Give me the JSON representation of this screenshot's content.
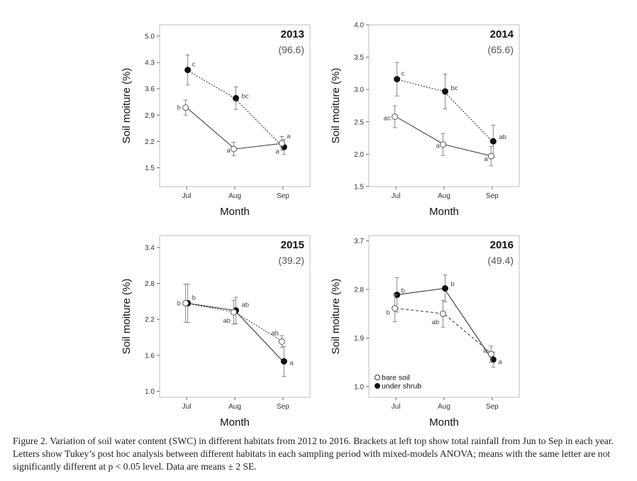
{
  "chart_data": [
    {
      "type": "line",
      "title": "2013",
      "rainfall": "(96.6)",
      "xlabel": "Month",
      "ylabel": "Soil moiture (%)",
      "categories": [
        "Jul",
        "Aug",
        "Sep"
      ],
      "ylim": [
        1.0,
        5.3
      ],
      "yticks": [
        1.5,
        2.2,
        2.9,
        3.6,
        4.3,
        5.0
      ],
      "ytick_labels": [
        "1.5",
        "2.2",
        "2.9",
        "3.6",
        "4.3",
        "5.0"
      ],
      "series": [
        {
          "name": "bare soil",
          "marker": "open",
          "line": "solid",
          "values": [
            3.1,
            2.0,
            2.15
          ],
          "errors": [
            0.2,
            0.18,
            0.18
          ],
          "letters": [
            "b",
            "a",
            "a"
          ]
        },
        {
          "name": "under shrub",
          "marker": "filled",
          "line": "dotted",
          "values": [
            4.1,
            3.35,
            2.05
          ],
          "errors": [
            0.4,
            0.3,
            0.2
          ],
          "letters": [
            "c",
            "bc",
            "a"
          ]
        }
      ]
    },
    {
      "type": "line",
      "title": "2014",
      "rainfall": "(65.6)",
      "xlabel": "Month",
      "ylabel": "Soil moiture (%)",
      "categories": [
        "Jul",
        "Aug",
        "Sep"
      ],
      "ylim": [
        1.5,
        4.0
      ],
      "yticks": [
        1.5,
        2.0,
        2.5,
        3.0,
        3.5,
        4.0
      ],
      "ytick_labels": [
        "1.5",
        "2.0",
        "2.5",
        "3.0",
        "3.5",
        "4.0"
      ],
      "series": [
        {
          "name": "bare soil",
          "marker": "open",
          "line": "solid",
          "values": [
            2.58,
            2.15,
            1.97
          ],
          "errors": [
            0.17,
            0.17,
            0.15
          ],
          "letters": [
            "ac",
            "a",
            "a"
          ]
        },
        {
          "name": "under shrub",
          "marker": "filled",
          "line": "dotted",
          "values": [
            3.16,
            2.97,
            2.2
          ],
          "errors": [
            0.26,
            0.27,
            0.25
          ],
          "letters": [
            "c",
            "bc",
            "ab"
          ]
        }
      ]
    },
    {
      "type": "line",
      "title": "2015",
      "rainfall": "(39.2)",
      "xlabel": "Month",
      "ylabel": "Soil moiture (%)",
      "categories": [
        "Jul",
        "Aug",
        "Sep"
      ],
      "ylim": [
        0.9,
        3.6
      ],
      "yticks": [
        1.0,
        1.6,
        2.2,
        2.8,
        3.4
      ],
      "ytick_labels": [
        "1.0",
        "1.6",
        "2.2",
        "2.8",
        "3.4"
      ],
      "series": [
        {
          "name": "bare soil",
          "marker": "open",
          "line": "dotted",
          "values": [
            2.47,
            2.32,
            1.83
          ],
          "errors": [
            0.32,
            0.2,
            0.1
          ],
          "letters": [
            "b",
            "ab",
            "ab"
          ]
        },
        {
          "name": "under shrub",
          "marker": "filled",
          "line": "solid",
          "values": [
            2.47,
            2.35,
            1.5
          ],
          "errors": [
            0.32,
            0.22,
            0.25
          ],
          "letters": [
            "b",
            "ab",
            "a"
          ]
        }
      ]
    },
    {
      "type": "line",
      "title": "2016",
      "rainfall": "(49.4)",
      "xlabel": "Month",
      "ylabel": "Soil moiture (%)",
      "categories": [
        "Jul",
        "Aug",
        "Sep"
      ],
      "ylim": [
        0.8,
        3.8
      ],
      "yticks": [
        1.0,
        1.9,
        2.8,
        3.7
      ],
      "ytick_labels": [
        "1.0",
        "1.9",
        "2.8",
        "3.7"
      ],
      "series": [
        {
          "name": "bare soil",
          "marker": "open",
          "line": "dashed",
          "values": [
            2.45,
            2.35,
            1.6
          ],
          "errors": [
            0.25,
            0.25,
            0.15
          ],
          "letters": [
            "b",
            "ab",
            "a"
          ]
        },
        {
          "name": "under shrub",
          "marker": "filled",
          "line": "solid",
          "values": [
            2.7,
            2.82,
            1.5
          ],
          "errors": [
            0.32,
            0.25,
            0.14
          ],
          "letters": [
            "b",
            "b",
            "a"
          ]
        }
      ],
      "legend": {
        "position": "bottom-left",
        "entries": [
          "bare soil",
          "under shrub"
        ]
      }
    }
  ],
  "caption": "Figure 2. Variation of soil water content (SWC) in different habitats from 2012 to 2016. Brackets at left top show total rainfall from Jun to Sep in each year. Letters show Tukey’s post hoc analysis between different habitats in each sampling period with mixed-models ANOVA; means with the same letter are not significantly different at p < 0.05 level. Data are means ± 2 SE."
}
